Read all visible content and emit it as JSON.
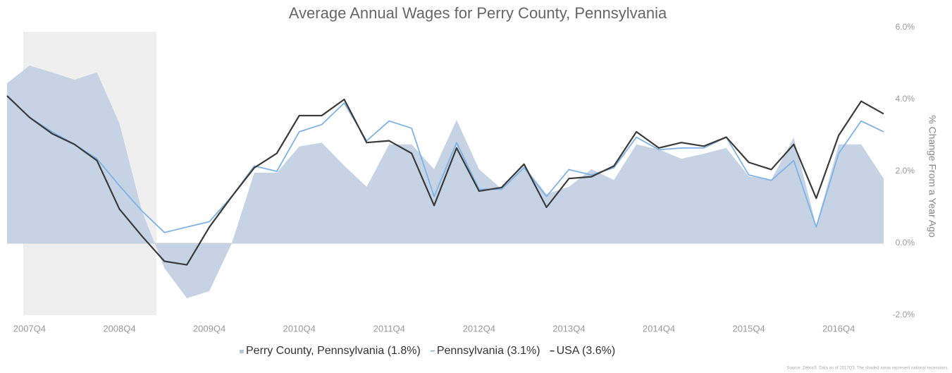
{
  "chart_data": {
    "type": "line",
    "title": "Average Annual Wages for Perry County, Pennsylvania",
    "y_axis_label": "% Change From a Year Ago",
    "source": "Source: Zebra®. Data as of 2017Q3. The shaded areas represent national recessions.",
    "categories": [
      null,
      "2007Q4",
      null,
      null,
      null,
      "2008Q4",
      null,
      null,
      null,
      "2009Q4",
      null,
      null,
      null,
      "2010Q4",
      null,
      null,
      null,
      "2011Q4",
      null,
      null,
      null,
      "2012Q4",
      null,
      null,
      null,
      "2013Q4",
      null,
      null,
      null,
      "2014Q4",
      null,
      null,
      null,
      "2015Q4",
      null,
      null,
      null,
      "2016Q4",
      null,
      null
    ],
    "ylim": [
      -2,
      6
    ],
    "yticks": [
      {
        "value": -2,
        "label": "-2.0%"
      },
      {
        "value": 0,
        "label": "0.0%"
      },
      {
        "value": 2,
        "label": "2.0%"
      },
      {
        "value": 4,
        "label": "4.0%"
      },
      {
        "value": 6,
        "label": "6.0%"
      }
    ],
    "grid": false,
    "series": [
      {
        "name": "Perry County, Pennsylvania (1.8%)",
        "color": "#c3d1e3",
        "style": "area",
        "values": [
          4.45,
          4.94,
          4.75,
          4.55,
          4.75,
          3.33,
          0.9,
          -0.69,
          -1.53,
          -1.33,
          0,
          1.96,
          1.96,
          2.69,
          2.8,
          2.16,
          1.57,
          2.75,
          2.75,
          2.06,
          3.43,
          2.06,
          1.51,
          2.16,
          1.37,
          1.57,
          2.06,
          1.76,
          2.75,
          2.61,
          2.35,
          2.49,
          2.65,
          1.86,
          1.76,
          2.94,
          0.49,
          2.75,
          2.75,
          1.8
        ]
      },
      {
        "name": "Pennsylvania (3.1%)",
        "color": "#7fb2e5",
        "style": "line",
        "values": [
          4.1,
          3.5,
          3.1,
          2.75,
          2.35,
          1.6,
          0.9,
          0.3,
          0.45,
          0.6,
          1.3,
          2.15,
          2.0,
          3.1,
          3.3,
          3.9,
          2.85,
          3.4,
          3.2,
          1.3,
          2.8,
          1.5,
          1.5,
          2.1,
          1.3,
          2.05,
          1.9,
          2.1,
          2.95,
          2.6,
          2.65,
          2.65,
          2.95,
          1.9,
          1.75,
          2.3,
          0.45,
          2.5,
          3.4,
          3.1
        ]
      },
      {
        "name": "USA (3.6%)",
        "color": "#3a3a3a",
        "style": "line",
        "values": [
          4.1,
          3.5,
          3.05,
          2.75,
          2.3,
          0.95,
          0.2,
          -0.5,
          -0.6,
          0.45,
          1.3,
          2.1,
          2.5,
          3.55,
          3.55,
          4.0,
          2.8,
          2.85,
          2.5,
          1.05,
          2.65,
          1.45,
          1.55,
          2.2,
          1.0,
          1.8,
          1.85,
          2.15,
          3.1,
          2.65,
          2.8,
          2.7,
          2.95,
          2.25,
          2.05,
          2.75,
          1.25,
          3.0,
          3.95,
          3.6
        ]
      }
    ]
  }
}
